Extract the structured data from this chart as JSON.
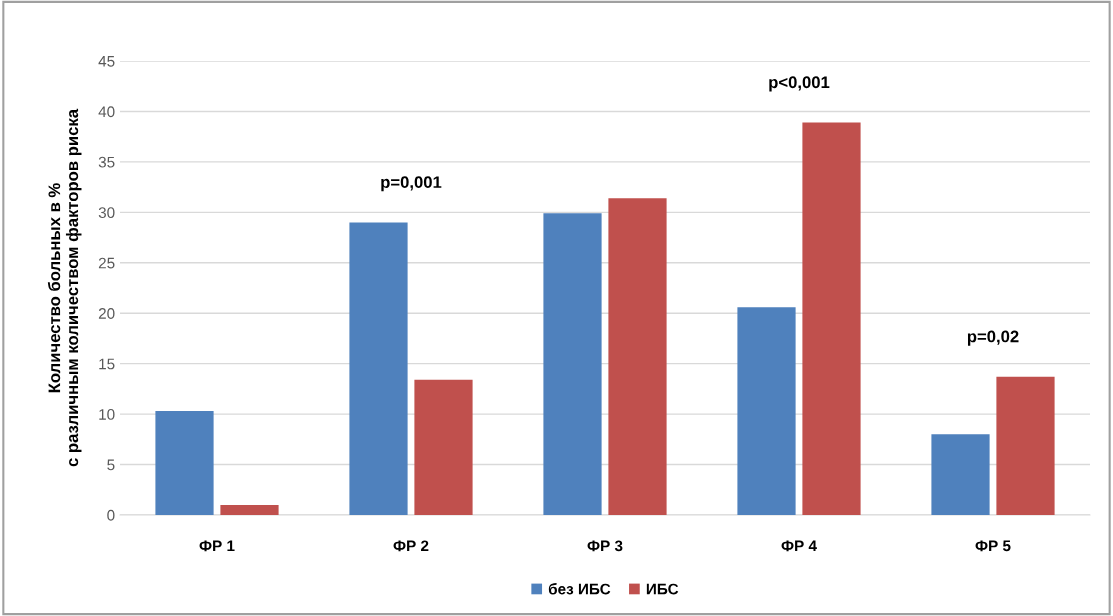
{
  "chart_data": {
    "type": "bar",
    "ylabel": "Количество больных в %\nс различным количеством факторов риска",
    "categories": [
      "ФР 1",
      "ФР 2",
      "ФР 3",
      "ФР 4",
      "ФР 5"
    ],
    "series": [
      {
        "name": "без ИБС",
        "color": "#4f81bd",
        "values": [
          10.3,
          29.0,
          29.9,
          20.6,
          8.0
        ]
      },
      {
        "name": "ИБС",
        "color": "#c0504d",
        "values": [
          1.0,
          13.4,
          31.4,
          38.9,
          13.7
        ]
      }
    ],
    "ylim": [
      0,
      45
    ],
    "yticks": [
      0,
      5,
      10,
      15,
      20,
      25,
      30,
      35,
      40,
      45
    ],
    "grid": "y",
    "legend": "bottom",
    "annotations": [
      "p=0,001",
      "p<0,001",
      "p=0,02"
    ]
  }
}
